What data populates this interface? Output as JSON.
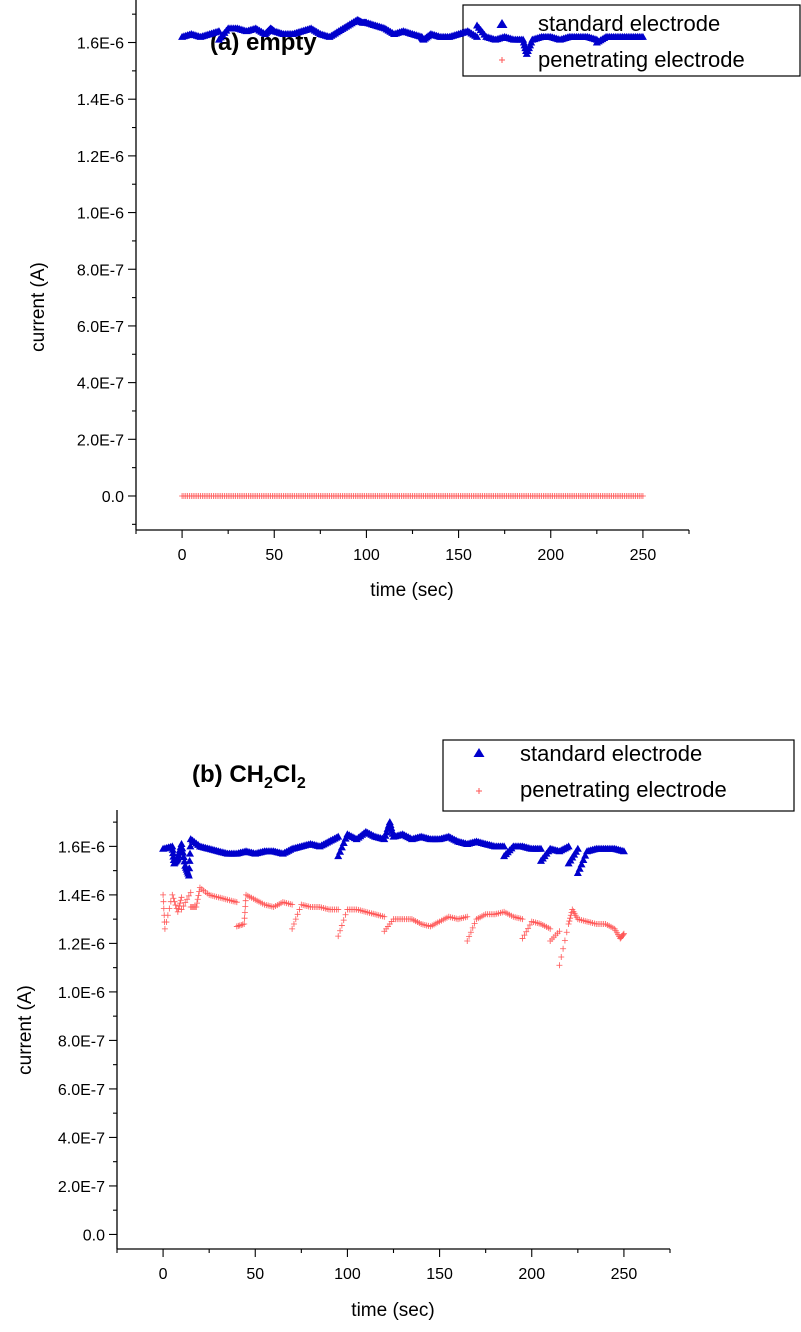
{
  "chart_data": [
    {
      "type": "scatter",
      "title": "(a) empty",
      "xlabel": "time (sec)",
      "ylabel": "current (A)",
      "xlim": [
        -25,
        275
      ],
      "ylim": [
        -1.2e-07,
        1.75e-06
      ],
      "x_ticks": [
        0,
        50,
        100,
        150,
        200,
        250
      ],
      "x_tick_labels": [
        "0",
        "50",
        "100",
        "150",
        "200",
        "250"
      ],
      "y_ticks": [
        0,
        2e-07,
        4e-07,
        6e-07,
        8e-07,
        1e-06,
        1.2e-06,
        1.4e-06,
        1.6e-06
      ],
      "y_tick_labels": [
        "0.0",
        "2.0E-7",
        "4.0E-7",
        "6.0E-7",
        "8.0E-7",
        "1.0E-6",
        "1.2E-6",
        "1.4E-6",
        "1.6E-6"
      ],
      "grid": false,
      "legend_position": "top-right",
      "series": [
        {
          "name": "standard electrode",
          "marker": "triangle",
          "color": "#0000cc",
          "x": [
            0,
            5,
            10,
            15,
            20,
            25,
            30,
            35,
            40,
            45,
            50,
            55,
            60,
            65,
            70,
            75,
            80,
            85,
            90,
            95,
            100,
            105,
            110,
            115,
            120,
            125,
            130,
            135,
            140,
            145,
            150,
            155,
            160,
            165,
            170,
            175,
            180,
            185,
            190,
            195,
            200,
            205,
            210,
            215,
            220,
            225,
            230,
            235,
            240,
            245,
            250,
            20,
            48,
            98,
            131,
            160,
            187,
            225
          ],
          "y": [
            1.62e-06,
            1.63e-06,
            1.62e-06,
            1.63e-06,
            1.64e-06,
            1.65e-06,
            1.65e-06,
            1.64e-06,
            1.65e-06,
            1.63e-06,
            1.64e-06,
            1.63e-06,
            1.63e-06,
            1.64e-06,
            1.65e-06,
            1.63e-06,
            1.62e-06,
            1.64e-06,
            1.66e-06,
            1.68e-06,
            1.67e-06,
            1.66e-06,
            1.65e-06,
            1.63e-06,
            1.64e-06,
            1.63e-06,
            1.62e-06,
            1.63e-06,
            1.62e-06,
            1.62e-06,
            1.63e-06,
            1.64e-06,
            1.62e-06,
            1.62e-06,
            1.61e-06,
            1.62e-06,
            1.61e-06,
            1.61e-06,
            1.61e-06,
            1.62e-06,
            1.62e-06,
            1.61e-06,
            1.62e-06,
            1.62e-06,
            1.62e-06,
            1.61e-06,
            1.62e-06,
            1.62e-06,
            1.62e-06,
            1.62e-06,
            1.62e-06,
            1.61e-06,
            1.65e-06,
            1.67e-06,
            1.61e-06,
            1.66e-06,
            1.56e-06,
            1.6e-06
          ]
        },
        {
          "name": "penetrating electrode",
          "marker": "plus",
          "color": "#ff5555",
          "x": [
            0,
            250
          ],
          "y": [
            0,
            0
          ],
          "step": 1
        }
      ]
    },
    {
      "type": "scatter",
      "title": "(b) CH2Cl2",
      "title_parts": [
        "(b) CH",
        "2",
        "Cl",
        "2"
      ],
      "xlabel": "time (sec)",
      "ylabel": "current (A)",
      "xlim": [
        -25,
        275
      ],
      "ylim": [
        -6e-08,
        1.75e-06
      ],
      "x_ticks": [
        0,
        50,
        100,
        150,
        200,
        250
      ],
      "x_tick_labels": [
        "0",
        "50",
        "100",
        "150",
        "200",
        "250"
      ],
      "y_ticks": [
        0,
        2e-07,
        4e-07,
        6e-07,
        8e-07,
        1e-06,
        1.2e-06,
        1.4e-06,
        1.6e-06
      ],
      "y_tick_labels": [
        "0.0",
        "2.0E-7",
        "4.0E-7",
        "6.0E-7",
        "8.0E-7",
        "1.0E-6",
        "1.2E-6",
        "1.4E-6",
        "1.6E-6"
      ],
      "grid": false,
      "legend_position": "top-right",
      "series": [
        {
          "name": "standard electrode",
          "marker": "triangle",
          "color": "#0000cc",
          "x": [
            0,
            5,
            10,
            15,
            20,
            25,
            30,
            35,
            40,
            45,
            50,
            55,
            60,
            65,
            70,
            75,
            80,
            85,
            90,
            95,
            100,
            105,
            110,
            115,
            120,
            125,
            130,
            135,
            140,
            145,
            150,
            155,
            160,
            165,
            170,
            175,
            180,
            185,
            190,
            195,
            200,
            205,
            210,
            215,
            220,
            225,
            230,
            235,
            240,
            245,
            250,
            6,
            8,
            12,
            14,
            95,
            123,
            185,
            205,
            220,
            225
          ],
          "y": [
            1.59e-06,
            1.6e-06,
            1.61e-06,
            1.63e-06,
            1.6e-06,
            1.59e-06,
            1.58e-06,
            1.57e-06,
            1.57e-06,
            1.58e-06,
            1.57e-06,
            1.58e-06,
            1.58e-06,
            1.57e-06,
            1.59e-06,
            1.6e-06,
            1.61e-06,
            1.6e-06,
            1.62e-06,
            1.64e-06,
            1.65e-06,
            1.63e-06,
            1.66e-06,
            1.64e-06,
            1.63e-06,
            1.64e-06,
            1.65e-06,
            1.63e-06,
            1.64e-06,
            1.63e-06,
            1.63e-06,
            1.64e-06,
            1.62e-06,
            1.61e-06,
            1.62e-06,
            1.61e-06,
            1.6e-06,
            1.6e-06,
            1.6e-06,
            1.6e-06,
            1.59e-06,
            1.59e-06,
            1.59e-06,
            1.58e-06,
            1.6e-06,
            1.59e-06,
            1.58e-06,
            1.59e-06,
            1.59e-06,
            1.59e-06,
            1.58e-06,
            1.53e-06,
            1.55e-06,
            1.52e-06,
            1.48e-06,
            1.56e-06,
            1.7e-06,
            1.56e-06,
            1.54e-06,
            1.53e-06,
            1.49e-06
          ]
        },
        {
          "name": "penetrating electrode",
          "marker": "plus",
          "color": "#ff5555",
          "x": [
            0,
            5,
            10,
            15,
            20,
            25,
            30,
            35,
            40,
            45,
            50,
            55,
            60,
            65,
            70,
            75,
            80,
            85,
            90,
            95,
            100,
            105,
            110,
            115,
            120,
            125,
            130,
            135,
            140,
            145,
            150,
            155,
            160,
            165,
            170,
            175,
            180,
            185,
            190,
            195,
            200,
            205,
            210,
            215,
            220,
            225,
            230,
            235,
            240,
            245,
            250,
            1,
            8,
            10,
            15,
            18,
            40,
            44,
            70,
            95,
            120,
            165,
            195,
            210,
            215,
            222,
            248
          ],
          "y": [
            1.4e-06,
            1.4e-06,
            1.39e-06,
            1.41e-06,
            1.43e-06,
            1.4e-06,
            1.39e-06,
            1.38e-06,
            1.37e-06,
            1.4e-06,
            1.38e-06,
            1.36e-06,
            1.35e-06,
            1.37e-06,
            1.36e-06,
            1.36e-06,
            1.35e-06,
            1.35e-06,
            1.34e-06,
            1.34e-06,
            1.34e-06,
            1.34e-06,
            1.33e-06,
            1.32e-06,
            1.31e-06,
            1.3e-06,
            1.3e-06,
            1.3e-06,
            1.28e-06,
            1.27e-06,
            1.29e-06,
            1.31e-06,
            1.3e-06,
            1.31e-06,
            1.3e-06,
            1.32e-06,
            1.32e-06,
            1.33e-06,
            1.31e-06,
            1.3e-06,
            1.29e-06,
            1.28e-06,
            1.26e-06,
            1.25e-06,
            1.28e-06,
            1.3e-06,
            1.29e-06,
            1.28e-06,
            1.28e-06,
            1.26e-06,
            1.24e-06,
            1.26e-06,
            1.33e-06,
            1.34e-06,
            1.35e-06,
            1.35e-06,
            1.27e-06,
            1.28e-06,
            1.26e-06,
            1.23e-06,
            1.25e-06,
            1.21e-06,
            1.22e-06,
            1.21e-06,
            1.11e-06,
            1.34e-06,
            1.22e-06
          ]
        }
      ]
    }
  ]
}
